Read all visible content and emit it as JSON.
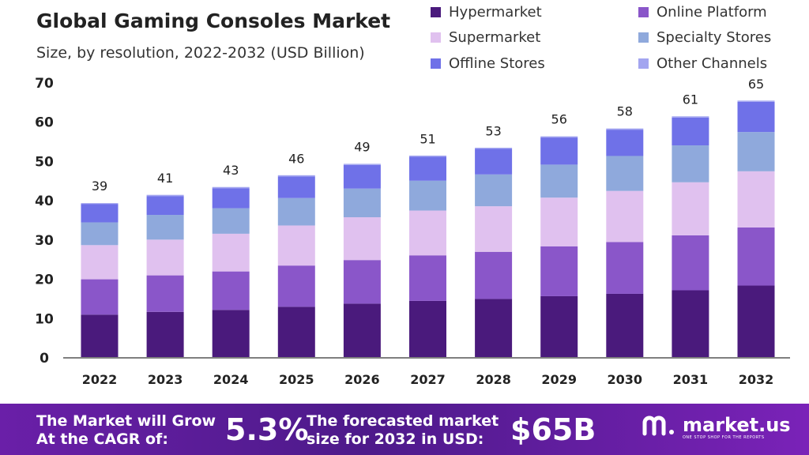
{
  "chart_data": {
    "type": "bar",
    "stacked": true,
    "title": "Global Gaming Consoles Market",
    "subtitle": "Size, by resolution, 2022-2032 (USD Billion)",
    "categories": [
      "2022",
      "2023",
      "2024",
      "2025",
      "2026",
      "2027",
      "2028",
      "2029",
      "2030",
      "2031",
      "2032"
    ],
    "totals": [
      39,
      41,
      43,
      46,
      49,
      51,
      53,
      56,
      58,
      61,
      65
    ],
    "series": [
      {
        "name": "Hypermarket",
        "color": "#4a1a7c",
        "values": [
          10.8,
          11.5,
          12.0,
          12.8,
          13.6,
          14.3,
          14.8,
          15.5,
          16.1,
          17.0,
          18.2
        ]
      },
      {
        "name": "Online Platform",
        "color": "#8a56c9",
        "values": [
          9.0,
          9.3,
          9.8,
          10.5,
          11.1,
          11.6,
          12.0,
          12.7,
          13.2,
          14.0,
          14.8
        ]
      },
      {
        "name": "Supermarket",
        "color": "#e0c1ef",
        "values": [
          8.7,
          9.1,
          9.6,
          10.2,
          10.9,
          11.4,
          11.6,
          12.4,
          13.0,
          13.5,
          14.3
        ]
      },
      {
        "name": "Specialty Stores",
        "color": "#8fa9dc",
        "values": [
          5.8,
          6.3,
          6.5,
          7.0,
          7.3,
          7.6,
          8.1,
          8.4,
          8.9,
          9.4,
          10.0
        ]
      },
      {
        "name": "Offline Stores",
        "color": "#6f71e8",
        "values": [
          4.7,
          4.8,
          5.1,
          5.5,
          6.0,
          6.1,
          6.5,
          6.9,
          6.7,
          7.1,
          7.7
        ]
      },
      {
        "name": "Other Channels",
        "color": "#a3a5f0",
        "values": [
          0.2,
          0.3,
          0.3,
          0.3,
          0.3,
          0.3,
          0.3,
          0.3,
          0.3,
          0.3,
          0.3
        ]
      }
    ],
    "ylim": [
      0,
      70
    ],
    "yticks": [
      0,
      10,
      20,
      30,
      40,
      50,
      60,
      70
    ],
    "grid": false,
    "legend_position": "top-right"
  },
  "footer": {
    "cagr_label_line1": "The Market will Grow",
    "cagr_label_line2": "At the CAGR of:",
    "cagr_value": "5.3%",
    "forecast_label_line1": "The forecasted market",
    "forecast_label_line2": "size for 2032 in USD:",
    "forecast_value": "$65B",
    "brand_name": "market.us",
    "brand_tagline": "ONE STOP SHOP FOR THE REPORTS"
  }
}
